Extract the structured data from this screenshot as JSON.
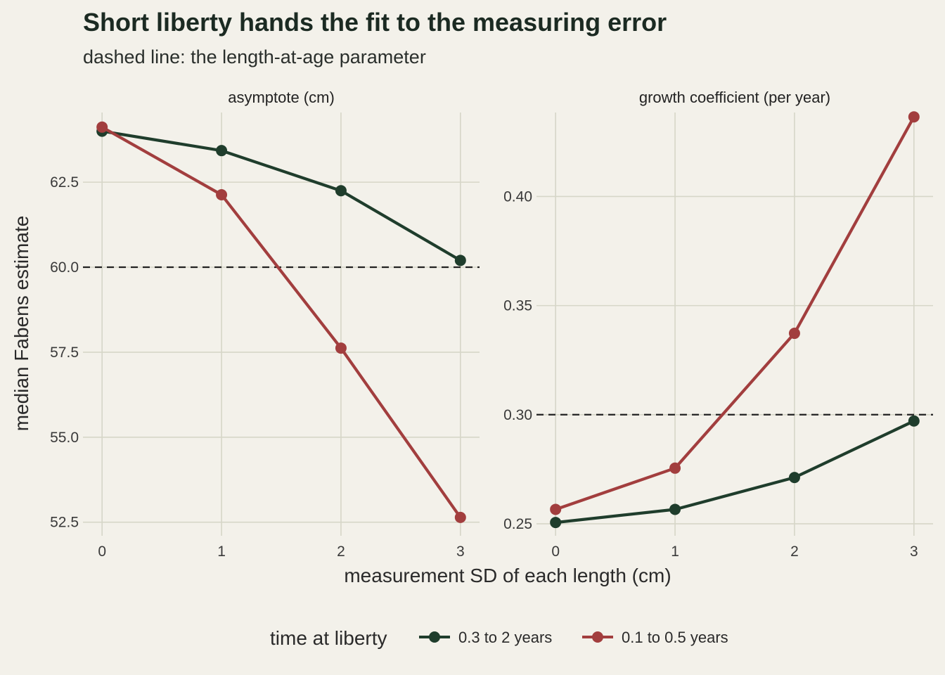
{
  "chart_data": {
    "type": "line",
    "title": "Short liberty hands the fit to the measuring error",
    "subtitle": "dashed line: the length-at-age parameter",
    "xlabel": "measurement SD of each length (cm)",
    "ylabel": "median Fabens estimate",
    "legend": {
      "title": "time at liberty",
      "placement": "bottom",
      "entries": [
        "0.3 to 2 years",
        "0.1 to 0.5 years"
      ]
    },
    "colors": {
      "0.3 to 2 years": "#1f3d2c",
      "0.1 to 0.5 years": "#a23e3e"
    },
    "grid": true,
    "panels": [
      {
        "strip": "asymptote (cm)",
        "x": [
          0,
          1,
          2,
          3
        ],
        "xlim": [
          -0.16,
          3.16
        ],
        "ylim": [
          52.1,
          64.55
        ],
        "yticks": [
          52.5,
          55.0,
          57.5,
          60.0,
          62.5
        ],
        "ytick_labels": [
          "52.5",
          "55.0",
          "57.5",
          "60.0",
          "62.5"
        ],
        "reference": 60.0,
        "series": [
          {
            "name": "0.3 to 2 years",
            "values": [
              64.0,
              63.43,
              62.25,
              60.2
            ]
          },
          {
            "name": "0.1 to 0.5 years",
            "values": [
              64.12,
              62.13,
              57.62,
              52.64
            ]
          }
        ]
      },
      {
        "strip": "growth coefficient (per year)",
        "x": [
          0,
          1,
          2,
          3
        ],
        "xlim": [
          -0.16,
          3.16
        ],
        "ylim": [
          0.2445,
          0.4385
        ],
        "yticks": [
          0.25,
          0.3,
          0.35,
          0.4
        ],
        "ytick_labels": [
          "0.25",
          "0.30",
          "0.35",
          "0.40"
        ],
        "reference": 0.3,
        "series": [
          {
            "name": "0.3 to 2 years",
            "values": [
              0.2506,
              0.2566,
              0.2712,
              0.2971
            ]
          },
          {
            "name": "0.1 to 0.5 years",
            "values": [
              0.2566,
              0.2755,
              0.3373,
              0.4365
            ]
          }
        ]
      }
    ],
    "xticks": [
      0,
      1,
      2,
      3
    ],
    "xtick_labels": [
      "0",
      "1",
      "2",
      "3"
    ]
  }
}
